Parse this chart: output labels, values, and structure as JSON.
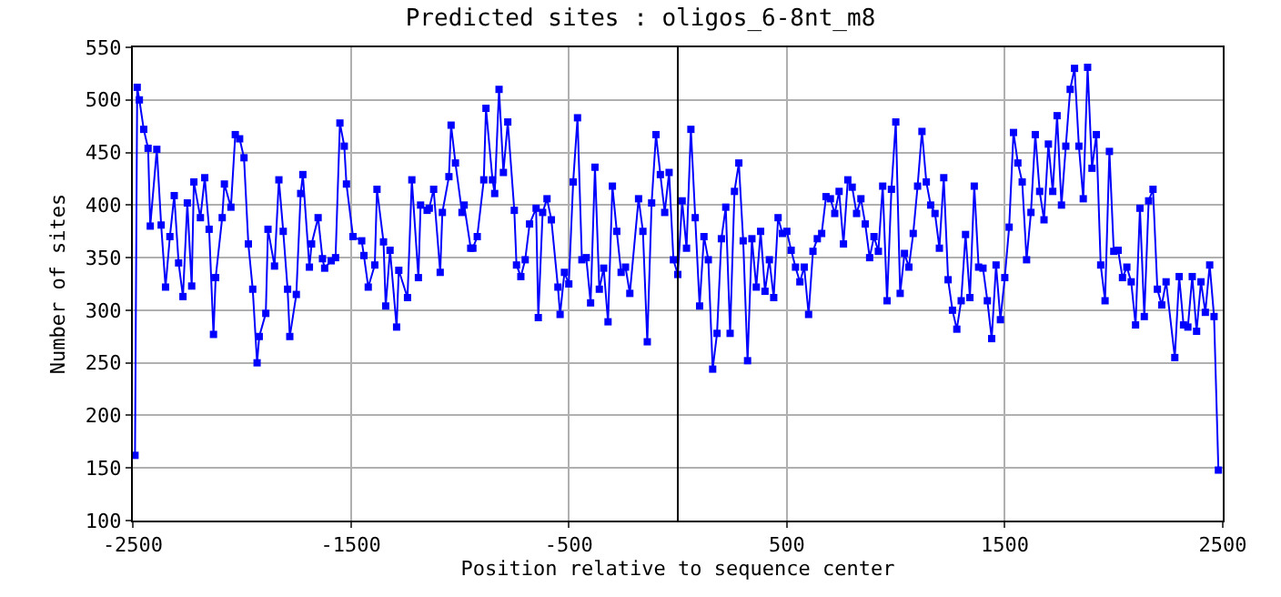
{
  "chart_data": {
    "type": "line",
    "title": "Predicted sites : oligos_6-8nt_m8",
    "xlabel": "Position relative to sequence center",
    "ylabel": "Number of sites",
    "x": [
      -2490,
      -2480,
      -2470,
      -2450,
      -2430,
      -2420,
      -2390,
      -2370,
      -2350,
      -2330,
      -2310,
      -2290,
      -2270,
      -2250,
      -2230,
      -2220,
      -2190,
      -2170,
      -2150,
      -2130,
      -2120,
      -2090,
      -2080,
      -2050,
      -2030,
      -2010,
      -1990,
      -1970,
      -1950,
      -1930,
      -1920,
      -1890,
      -1880,
      -1850,
      -1830,
      -1810,
      -1790,
      -1780,
      -1750,
      -1730,
      -1720,
      -1690,
      -1680,
      -1650,
      -1630,
      -1620,
      -1590,
      -1570,
      -1550,
      -1530,
      -1520,
      -1490,
      -1450,
      -1440,
      -1420,
      -1390,
      -1380,
      -1350,
      -1340,
      -1320,
      -1290,
      -1280,
      -1240,
      -1220,
      -1190,
      -1180,
      -1150,
      -1140,
      -1120,
      -1090,
      -1080,
      -1050,
      -1040,
      -1020,
      -990,
      -980,
      -950,
      -940,
      -920,
      -890,
      -880,
      -850,
      -840,
      -820,
      -800,
      -780,
      -750,
      -740,
      -720,
      -700,
      -680,
      -650,
      -640,
      -620,
      -600,
      -580,
      -550,
      -540,
      -520,
      -500,
      -480,
      -460,
      -440,
      -420,
      -400,
      -380,
      -360,
      -340,
      -320,
      -300,
      -280,
      -260,
      -240,
      -220,
      -180,
      -160,
      -140,
      -120,
      -100,
      -80,
      -60,
      -40,
      -20,
      0,
      20,
      40,
      60,
      80,
      100,
      120,
      140,
      160,
      180,
      200,
      220,
      240,
      260,
      280,
      300,
      320,
      340,
      360,
      380,
      400,
      420,
      440,
      460,
      480,
      500,
      520,
      540,
      560,
      580,
      600,
      620,
      640,
      660,
      680,
      700,
      720,
      740,
      760,
      780,
      800,
      820,
      840,
      860,
      880,
      900,
      920,
      940,
      960,
      980,
      1000,
      1020,
      1040,
      1060,
      1080,
      1100,
      1120,
      1140,
      1160,
      1180,
      1200,
      1220,
      1240,
      1260,
      1280,
      1300,
      1320,
      1340,
      1360,
      1380,
      1400,
      1420,
      1440,
      1460,
      1480,
      1500,
      1520,
      1540,
      1560,
      1580,
      1600,
      1620,
      1640,
      1660,
      1680,
      1700,
      1720,
      1740,
      1760,
      1780,
      1800,
      1820,
      1840,
      1860,
      1880,
      1900,
      1920,
      1940,
      1960,
      1980,
      2000,
      2020,
      2040,
      2060,
      2080,
      2100,
      2120,
      2140,
      2160,
      2180,
      2200,
      2220,
      2240,
      2280,
      2300,
      2320,
      2340,
      2360,
      2380,
      2400,
      2420,
      2440,
      2460,
      2480
    ],
    "series": [
      {
        "color": "#0000ff",
        "values": [
          162,
          512,
          500,
          472,
          454,
          380,
          453,
          381,
          322,
          370,
          409,
          345,
          313,
          402,
          323,
          422,
          388,
          426,
          377,
          277,
          331,
          388,
          420,
          398,
          467,
          463,
          445,
          363,
          320,
          250,
          275,
          297,
          377,
          342,
          424,
          375,
          320,
          275,
          315,
          411,
          429,
          341,
          363,
          388,
          349,
          340,
          347,
          350,
          478,
          456,
          420,
          370,
          366,
          352,
          322,
          343,
          415,
          365,
          304,
          357,
          284,
          338,
          312,
          424,
          331,
          400,
          395,
          397,
          415,
          336,
          393,
          427,
          476,
          440,
          393,
          400,
          359,
          359,
          370,
          424,
          492,
          424,
          411,
          510,
          431,
          479,
          395,
          343,
          332,
          348,
          382,
          397,
          293,
          393,
          406,
          386,
          322,
          296,
          336,
          325,
          422,
          483,
          348,
          350,
          307,
          436,
          320,
          340,
          289,
          418,
          375,
          336,
          341,
          316,
          406,
          375,
          270,
          402,
          467,
          429,
          393,
          431,
          348,
          334,
          404,
          359,
          472,
          388,
          304,
          370,
          348,
          244,
          278,
          368,
          398,
          278,
          413,
          440,
          366,
          252,
          368,
          322,
          375,
          318,
          348,
          312,
          388,
          373,
          375,
          357,
          341,
          327,
          341,
          296,
          356,
          368,
          373,
          408,
          406,
          392,
          413,
          363,
          424,
          417,
          392,
          406,
          382,
          350,
          370,
          356,
          418,
          309,
          415,
          479,
          316,
          354,
          341,
          373,
          418,
          470,
          422,
          400,
          392,
          359,
          426,
          329,
          300,
          282,
          309,
          372,
          312,
          418,
          341,
          340,
          309,
          273,
          343,
          291,
          331,
          379,
          469,
          440,
          422,
          348,
          393,
          467,
          413,
          386,
          458,
          413,
          485,
          400,
          456,
          510,
          530,
          456,
          406,
          531,
          435,
          467,
          343,
          309,
          451,
          356,
          357,
          331,
          341,
          327,
          286,
          397,
          294,
          404,
          415,
          320,
          305,
          327,
          255,
          332,
          286,
          284,
          332,
          280,
          327,
          298,
          343,
          294,
          148
        ]
      }
    ],
    "xlim": [
      -2500,
      2500
    ],
    "ylim": [
      100,
      550
    ],
    "xticks": [
      -2500,
      -1500,
      -500,
      500,
      1500,
      2500
    ],
    "yticks": [
      100,
      150,
      200,
      250,
      300,
      350,
      400,
      450,
      500,
      550
    ],
    "ref_lines": [
      {
        "axis": "x",
        "value": 0,
        "color": "#000000"
      }
    ],
    "grid": true,
    "marker": "square",
    "line_style": "solid"
  }
}
